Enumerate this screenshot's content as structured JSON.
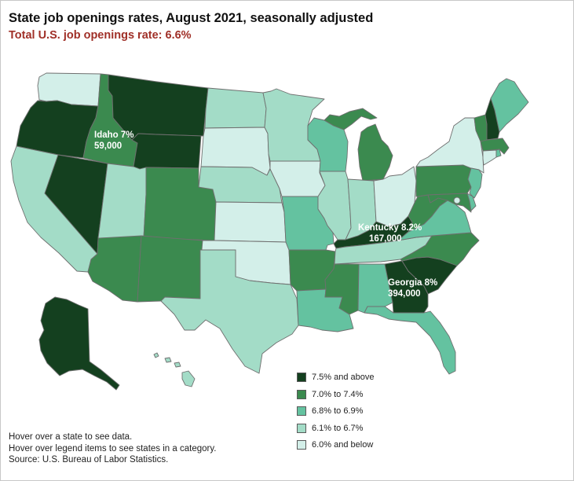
{
  "title": "State job openings rates, August 2021, seasonally adjusted",
  "subtitle": "Total U.S. job openings rate: 6.6%",
  "colors": {
    "subtitle": "#a03028",
    "cat1": "#14401f",
    "cat2": "#3b8a4f",
    "cat3": "#64c2a0",
    "cat4": "#a3dcc7",
    "cat5": "#d3efe9"
  },
  "legend": [
    {
      "label": "7.5% and above",
      "category": "cat1"
    },
    {
      "label": "7.0% to 7.4%",
      "category": "cat2"
    },
    {
      "label": "6.8% to 6.9%",
      "category": "cat3"
    },
    {
      "label": "6.1% to 6.7%",
      "category": "cat4"
    },
    {
      "label": "6.0% and below",
      "category": "cat5"
    }
  ],
  "callouts": {
    "idaho": {
      "line1": "Idaho 7%",
      "line2": "59,000"
    },
    "kentucky": {
      "line1": "Kentucky 8.2%",
      "line2": "167,000"
    },
    "georgia": {
      "line1": "Georgia 8%",
      "line2": "394,000"
    }
  },
  "notes": [
    "Hover over a state to see data.",
    "Hover over legend items to see states in a category.",
    "Source: U.S. Bureau of Labor Statistics."
  ],
  "states": [
    {
      "abbr": "WA",
      "category": "cat5"
    },
    {
      "abbr": "OR",
      "category": "cat1"
    },
    {
      "abbr": "CA",
      "category": "cat4"
    },
    {
      "abbr": "NV",
      "category": "cat1"
    },
    {
      "abbr": "ID",
      "category": "cat2"
    },
    {
      "abbr": "MT",
      "category": "cat1"
    },
    {
      "abbr": "WY",
      "category": "cat1"
    },
    {
      "abbr": "UT",
      "category": "cat4"
    },
    {
      "abbr": "AZ",
      "category": "cat2"
    },
    {
      "abbr": "CO",
      "category": "cat2"
    },
    {
      "abbr": "NM",
      "category": "cat2"
    },
    {
      "abbr": "ND",
      "category": "cat4"
    },
    {
      "abbr": "SD",
      "category": "cat5"
    },
    {
      "abbr": "NE",
      "category": "cat4"
    },
    {
      "abbr": "KS",
      "category": "cat5"
    },
    {
      "abbr": "OK",
      "category": "cat5"
    },
    {
      "abbr": "TX",
      "category": "cat4"
    },
    {
      "abbr": "MN",
      "category": "cat4"
    },
    {
      "abbr": "IA",
      "category": "cat5"
    },
    {
      "abbr": "MO",
      "category": "cat3"
    },
    {
      "abbr": "AR",
      "category": "cat2"
    },
    {
      "abbr": "LA",
      "category": "cat3"
    },
    {
      "abbr": "WI",
      "category": "cat3"
    },
    {
      "abbr": "IL",
      "category": "cat4"
    },
    {
      "abbr": "MI",
      "category": "cat2"
    },
    {
      "abbr": "IN",
      "category": "cat4"
    },
    {
      "abbr": "OH",
      "category": "cat5"
    },
    {
      "abbr": "KY",
      "category": "cat1"
    },
    {
      "abbr": "TN",
      "category": "cat4"
    },
    {
      "abbr": "MS",
      "category": "cat2"
    },
    {
      "abbr": "AL",
      "category": "cat3"
    },
    {
      "abbr": "GA",
      "category": "cat1"
    },
    {
      "abbr": "FL",
      "category": "cat3"
    },
    {
      "abbr": "SC",
      "category": "cat1"
    },
    {
      "abbr": "NC",
      "category": "cat2"
    },
    {
      "abbr": "VA",
      "category": "cat3"
    },
    {
      "abbr": "WV",
      "category": "cat2"
    },
    {
      "abbr": "PA",
      "category": "cat2"
    },
    {
      "abbr": "NY",
      "category": "cat5"
    },
    {
      "abbr": "NJ",
      "category": "cat3"
    },
    {
      "abbr": "MD",
      "category": "cat2"
    },
    {
      "abbr": "DE",
      "category": "cat3"
    },
    {
      "abbr": "DC",
      "category": "cat5"
    },
    {
      "abbr": "VT",
      "category": "cat2"
    },
    {
      "abbr": "NH",
      "category": "cat1"
    },
    {
      "abbr": "ME",
      "category": "cat3"
    },
    {
      "abbr": "MA",
      "category": "cat2"
    },
    {
      "abbr": "CT",
      "category": "cat5"
    },
    {
      "abbr": "RI",
      "category": "cat3"
    },
    {
      "abbr": "AK",
      "category": "cat1"
    },
    {
      "abbr": "HI",
      "category": "cat4"
    }
  ]
}
